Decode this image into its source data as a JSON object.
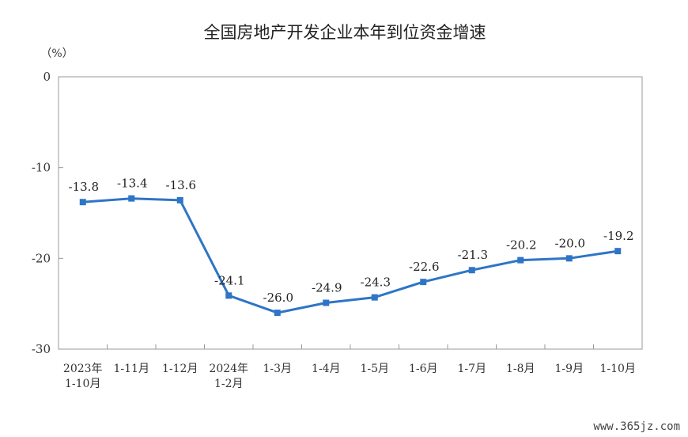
{
  "chart_data": {
    "type": "line",
    "title": "全国房地产开发企业本年到位资金增速",
    "ylabel": "（%）",
    "ylim": [
      -30,
      0
    ],
    "yticks": [
      0,
      -10,
      -20,
      -30
    ],
    "grid": false,
    "categories": [
      [
        "2023年",
        "1-10月"
      ],
      [
        "1-11月"
      ],
      [
        "1-12月"
      ],
      [
        "2024年",
        "1-2月"
      ],
      [
        "1-3月"
      ],
      [
        "1-4月"
      ],
      [
        "1-5月"
      ],
      [
        "1-6月"
      ],
      [
        "1-7月"
      ],
      [
        "1-8月"
      ],
      [
        "1-9月"
      ],
      [
        "1-10月"
      ]
    ],
    "series": [
      {
        "color": "#2e75c6",
        "values": [
          -13.8,
          -13.4,
          -13.6,
          -24.1,
          -26.0,
          -24.9,
          -24.3,
          -22.6,
          -21.3,
          -20.2,
          -20.0,
          -19.2
        ],
        "labels": [
          "-13.8",
          "-13.4",
          "-13.6",
          "-24.1",
          "-26.0",
          "-24.9",
          "-24.3",
          "-22.6",
          "-21.3",
          "-20.2",
          "-20.0",
          "-19.2"
        ]
      }
    ]
  },
  "watermark": "www.365jz.com"
}
